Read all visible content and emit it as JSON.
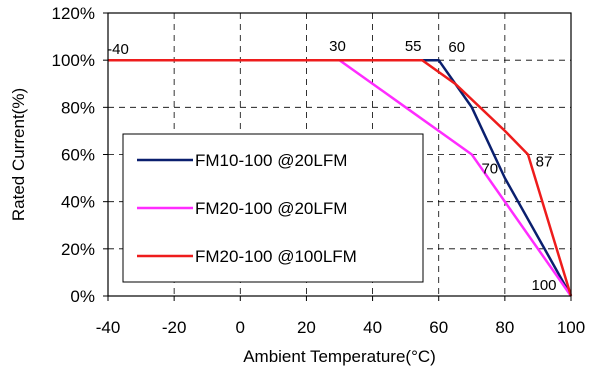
{
  "chart_data": {
    "type": "line",
    "title": "",
    "xlabel": "Ambient Temperature(°C)",
    "ylabel": "Rated Current(%)",
    "xlim": [
      -40,
      100
    ],
    "ylim": [
      0,
      120
    ],
    "x_ticks": [
      -40,
      -20,
      0,
      20,
      40,
      60,
      80,
      100
    ],
    "x_tick_labels": [
      "-40",
      "-20",
      "0",
      "20",
      "40",
      "60",
      "80",
      "100"
    ],
    "y_ticks": [
      0,
      20,
      40,
      60,
      80,
      100,
      120
    ],
    "y_tick_labels": [
      "0%",
      "20%",
      "40%",
      "60%",
      "80%",
      "100%",
      "120%"
    ],
    "grid": true,
    "legend_position": "bottom-left",
    "series": [
      {
        "name": "FM10-100 @20LFM",
        "color": "#0a1f6e",
        "points": [
          [
            -40,
            100
          ],
          [
            60,
            100
          ],
          [
            70,
            80
          ],
          [
            80,
            50
          ],
          [
            100,
            0
          ]
        ]
      },
      {
        "name": "FM20-100 @20LFM",
        "color": "#ff2cff",
        "points": [
          [
            -40,
            100
          ],
          [
            30,
            100
          ],
          [
            50,
            80
          ],
          [
            60,
            70
          ],
          [
            70,
            60
          ],
          [
            100,
            0
          ]
        ]
      },
      {
        "name": "FM20-100 @100LFM",
        "color": "#ee1c1c",
        "points": [
          [
            -40,
            100
          ],
          [
            55,
            100
          ],
          [
            65,
            90
          ],
          [
            80,
            70
          ],
          [
            87,
            60
          ],
          [
            100,
            0
          ]
        ]
      }
    ],
    "annotations": [
      {
        "text": "-40",
        "x": -40,
        "y": 100
      },
      {
        "text": "30",
        "x": 30,
        "y": 100
      },
      {
        "text": "55",
        "x": 55,
        "y": 100
      },
      {
        "text": "60",
        "x": 60,
        "y": 100
      },
      {
        "text": "70",
        "x": 70,
        "y": 60
      },
      {
        "text": "87",
        "x": 87,
        "y": 60
      },
      {
        "text": "100",
        "x": 100,
        "y": 0
      }
    ]
  }
}
